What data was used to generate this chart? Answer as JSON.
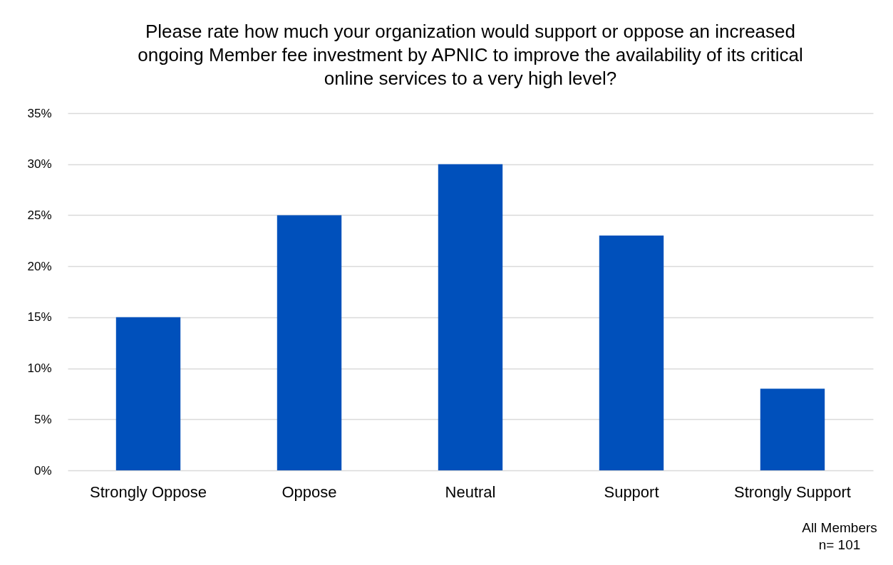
{
  "chart_data": {
    "type": "bar",
    "title": "Please rate how much your organization would support or oppose an increased ongoing Member fee investment by APNIC to improve the availability of its critical online services to a very high level?",
    "categories": [
      "Strongly Oppose",
      "Oppose",
      "Neutral",
      "Support",
      "Strongly Support"
    ],
    "values": [
      15,
      25,
      30,
      23,
      8
    ],
    "color": "#0050bb",
    "ylim": [
      0,
      35
    ],
    "yticks": [
      {
        "value": 0,
        "label": "0%"
      },
      {
        "value": 5,
        "label": "5%"
      },
      {
        "value": 10,
        "label": "10%"
      },
      {
        "value": 15,
        "label": "15%"
      },
      {
        "value": 20,
        "label": "20%"
      },
      {
        "value": 25,
        "label": "25%"
      },
      {
        "value": 30,
        "label": "30%"
      },
      {
        "value": 35,
        "label": "35%"
      }
    ],
    "grid": "y",
    "annotations": [
      "All Members",
      "n= 101"
    ]
  }
}
